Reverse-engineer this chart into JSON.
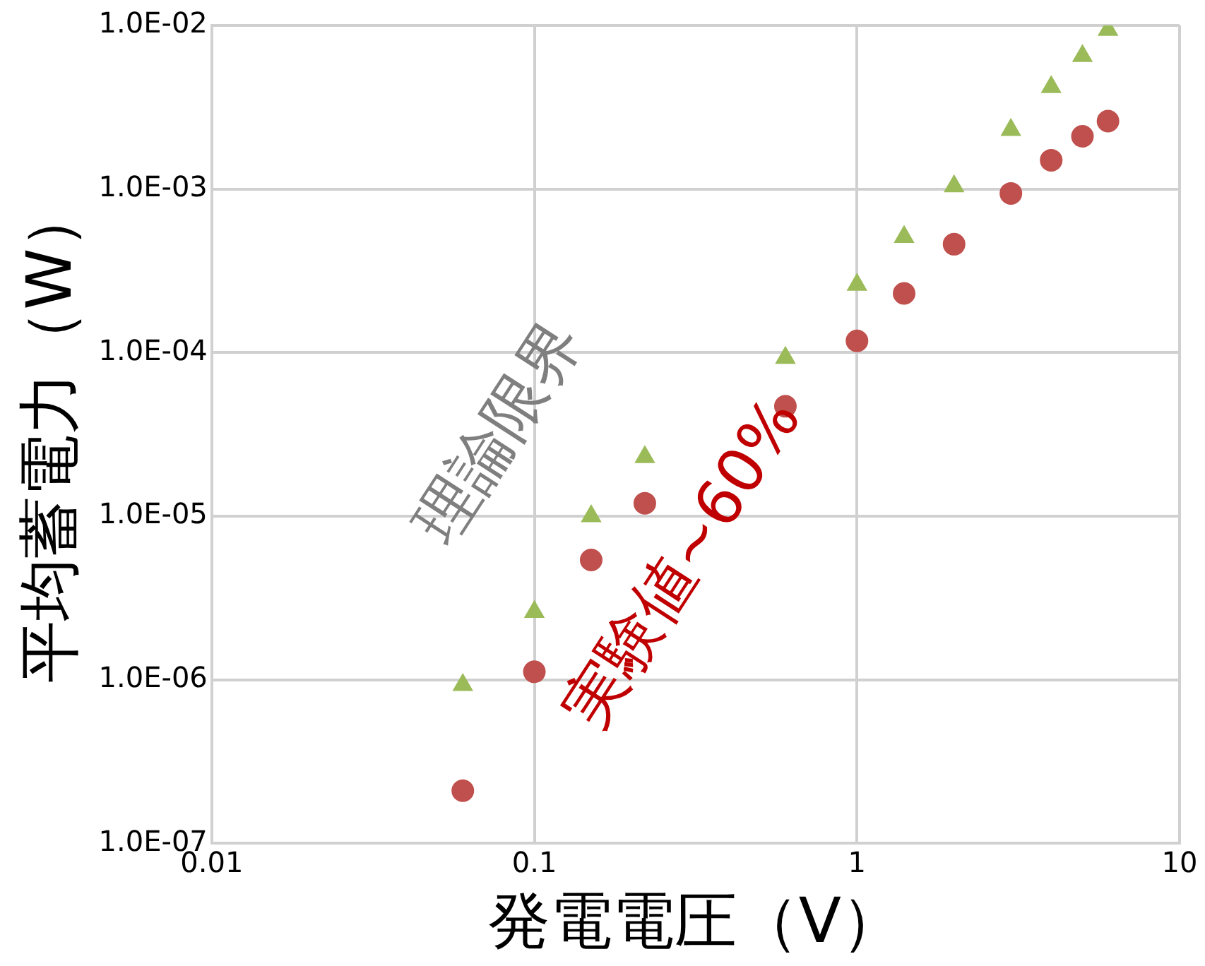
{
  "chart_data": {
    "type": "scatter",
    "xlabel": "発電電圧（V）",
    "ylabel": "平均蓄電力（W）",
    "log": "xy",
    "grid": true,
    "legend": false,
    "xlim": [
      0.01,
      10
    ],
    "xticks": [
      0.01,
      0.1,
      1,
      10
    ],
    "ylim": [
      1e-07,
      0.01
    ],
    "yticks": [
      {
        "value": 1e-07,
        "label": "1.0E-07"
      },
      {
        "value": 1e-06,
        "label": "1.0E-06"
      },
      {
        "value": 1e-05,
        "label": "1.0E-05"
      },
      {
        "value": 0.0001,
        "label": "1.0E-04"
      },
      {
        "value": 0.001,
        "label": "1.0E-03"
      },
      {
        "value": 0.01,
        "label": "1.0E-02"
      }
    ],
    "series": [
      {
        "color": "#9bbb59",
        "marker": "triangle",
        "x": [
          0.06,
          0.1,
          0.15,
          0.22,
          0.6,
          1,
          1.4,
          2,
          3,
          4,
          5,
          6
        ],
        "values": [
          9.3e-07,
          2.6e-06,
          1e-05,
          2.3e-05,
          9.3e-05,
          0.00026,
          0.00051,
          0.00104,
          0.0023,
          0.0042,
          0.0065,
          0.0094
        ]
      },
      {
        "color": "#c0504d",
        "marker": "circle",
        "x": [
          0.06,
          0.1,
          0.15,
          0.22,
          0.6,
          1,
          1.4,
          2,
          3,
          4,
          5,
          6
        ],
        "values": [
          2.1e-07,
          1.12e-06,
          5.4e-06,
          1.2e-05,
          4.7e-05,
          0.000118,
          0.00023,
          0.00046,
          0.00094,
          0.0015,
          0.0021,
          0.0026
        ]
      }
    ],
    "annotations": [
      "理論限界",
      "実験値~60%"
    ]
  }
}
